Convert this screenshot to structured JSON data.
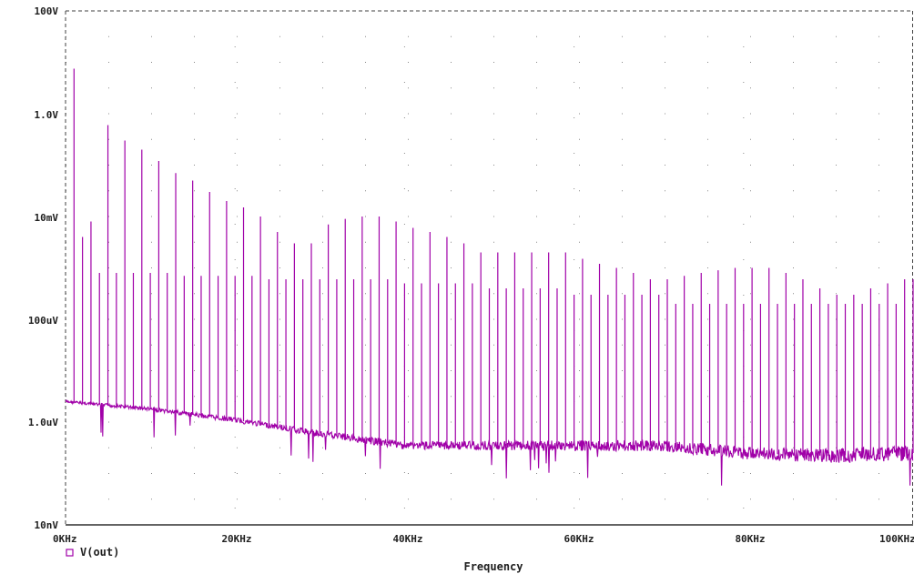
{
  "chart_data": {
    "type": "line",
    "x_scale": "linear",
    "y_scale": "log",
    "xlim": [
      0,
      100
    ],
    "x_unit": "KHz",
    "ylim_volts": [
      1e-08,
      100
    ],
    "x_tick_labels": [
      "0KHz",
      "20KHz",
      "40KHz",
      "60KHz",
      "80KHz",
      "100KHz"
    ],
    "y_tick_labels": [
      "100V",
      "1.0V",
      "10mV",
      "100uV",
      "1.0uV",
      "10nV"
    ],
    "xlabel": "Frequency",
    "ylabel": "",
    "grid": "dotted",
    "legend_position": "bottom-left",
    "series": [
      {
        "name": "V(out)",
        "color": "#a000a8",
        "noise_floor": {
          "x_khz": [
            0,
            10,
            20,
            30,
            40,
            50,
            60,
            70,
            80,
            90,
            100
          ],
          "y_volts": [
            2.5e-06,
            1.8e-06,
            1.1e-06,
            6e-07,
            3.5e-07,
            3.5e-07,
            3.5e-07,
            3.5e-07,
            2.5e-07,
            2.2e-07,
            2.5e-07
          ]
        },
        "harmonics": {
          "x_khz": [
            1,
            2,
            3,
            4,
            5,
            6,
            7,
            8,
            9,
            10,
            11,
            12,
            13,
            14,
            15,
            16,
            17,
            18,
            19,
            20,
            21,
            22,
            23,
            24,
            25,
            26,
            27,
            28,
            29,
            30,
            31,
            32,
            33,
            34,
            35,
            36,
            37,
            38,
            39,
            40,
            41,
            42,
            43,
            44,
            45,
            46,
            47,
            48,
            49,
            50,
            51,
            52,
            53,
            54,
            55,
            56,
            57,
            58,
            59,
            60,
            61,
            62,
            63,
            64,
            65,
            66,
            67,
            68,
            69,
            70,
            71,
            72,
            73,
            74,
            75,
            76,
            77,
            78,
            79,
            80,
            81,
            82,
            83,
            84,
            85,
            86,
            87,
            88,
            89,
            90,
            91,
            92,
            93,
            94,
            95,
            96,
            97,
            98,
            99,
            100
          ],
          "y_volts": [
            7.5,
            0.004,
            0.008,
            0.0008,
            0.6,
            0.0008,
            0.3,
            0.0008,
            0.2,
            0.0008,
            0.12,
            0.0008,
            0.07,
            0.0007,
            0.05,
            0.0007,
            0.03,
            0.0007,
            0.02,
            0.0007,
            0.015,
            0.0007,
            0.01,
            0.0006,
            0.005,
            0.0006,
            0.003,
            0.0006,
            0.003,
            0.0006,
            0.007,
            0.0006,
            0.009,
            0.0006,
            0.01,
            0.0006,
            0.01,
            0.0006,
            0.008,
            0.0005,
            0.006,
            0.0005,
            0.005,
            0.0005,
            0.004,
            0.0005,
            0.003,
            0.0005,
            0.002,
            0.0004,
            0.002,
            0.0004,
            0.002,
            0.0004,
            0.002,
            0.0004,
            0.002,
            0.0004,
            0.002,
            0.0003,
            0.0015,
            0.0003,
            0.0012,
            0.0003,
            0.001,
            0.0003,
            0.0008,
            0.0003,
            0.0006,
            0.0003,
            0.0006,
            0.0002,
            0.0007,
            0.0002,
            0.0008,
            0.0002,
            0.0009,
            0.0002,
            0.001,
            0.0002,
            0.001,
            0.0002,
            0.001,
            0.0002,
            0.0008,
            0.0002,
            0.0006,
            0.0002,
            0.0004,
            0.0002,
            0.0003,
            0.0002,
            0.0003,
            0.0002,
            0.0004,
            0.0002,
            0.0005,
            0.0002,
            0.0006,
            0.0006
          ]
        }
      }
    ]
  }
}
